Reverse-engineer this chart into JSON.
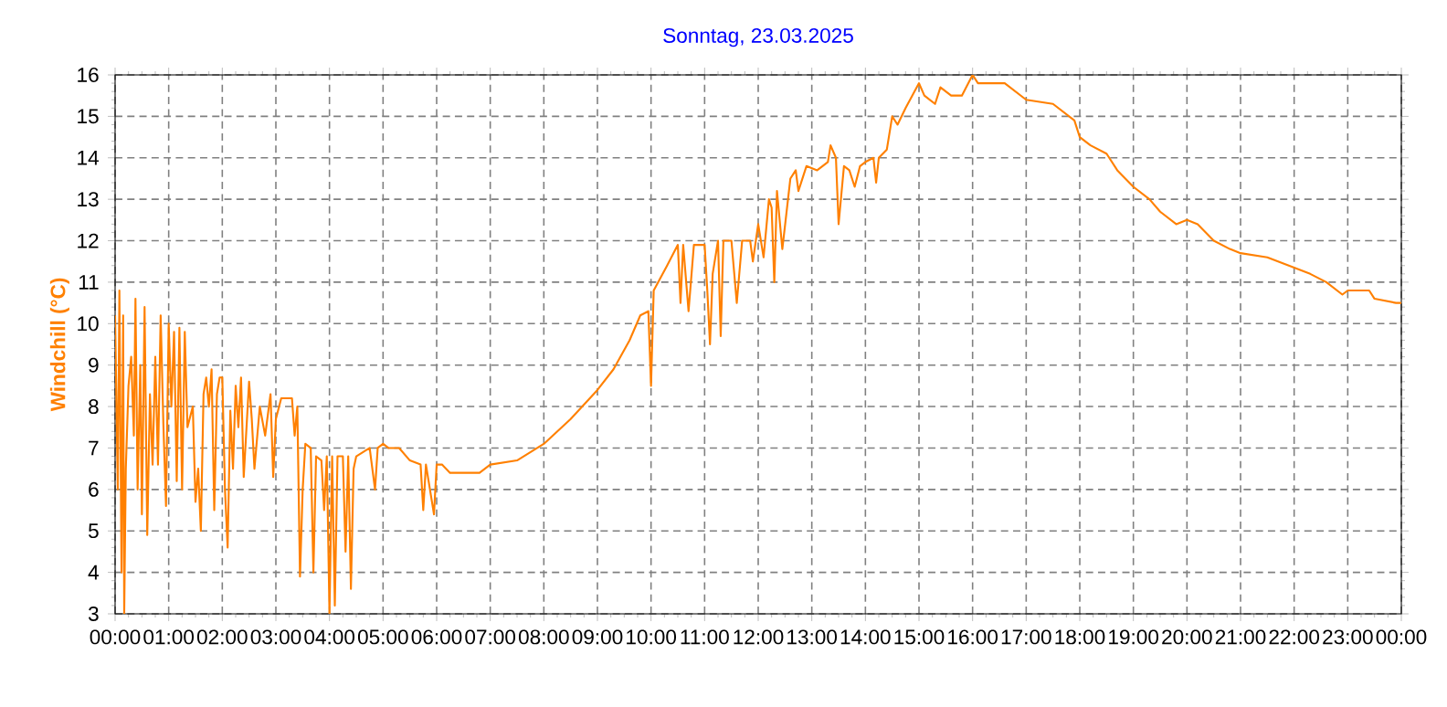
{
  "chart_data": {
    "type": "line",
    "title": "Sonntag, 23.03.2025",
    "ylabel": "Windchill (°C)",
    "xlim": [
      0,
      24
    ],
    "ylim": [
      3,
      16
    ],
    "xticks": [
      {
        "value": 0,
        "label": "00:00"
      },
      {
        "value": 1,
        "label": "01:00"
      },
      {
        "value": 2,
        "label": "02:00"
      },
      {
        "value": 3,
        "label": "03:00"
      },
      {
        "value": 4,
        "label": "04:00"
      },
      {
        "value": 5,
        "label": "05:00"
      },
      {
        "value": 6,
        "label": "06:00"
      },
      {
        "value": 7,
        "label": "07:00"
      },
      {
        "value": 8,
        "label": "08:00"
      },
      {
        "value": 9,
        "label": "09:00"
      },
      {
        "value": 10,
        "label": "10:00"
      },
      {
        "value": 11,
        "label": "11:00"
      },
      {
        "value": 12,
        "label": "12:00"
      },
      {
        "value": 13,
        "label": "13:00"
      },
      {
        "value": 14,
        "label": "14:00"
      },
      {
        "value": 15,
        "label": "15:00"
      },
      {
        "value": 16,
        "label": "16:00"
      },
      {
        "value": 17,
        "label": "17:00"
      },
      {
        "value": 18,
        "label": "18:00"
      },
      {
        "value": 19,
        "label": "19:00"
      },
      {
        "value": 20,
        "label": "20:00"
      },
      {
        "value": 21,
        "label": "21:00"
      },
      {
        "value": 22,
        "label": "22:00"
      },
      {
        "value": 23,
        "label": "23:00"
      },
      {
        "value": 24,
        "label": "00:00"
      }
    ],
    "yticks": [
      3,
      4,
      5,
      6,
      7,
      8,
      9,
      10,
      11,
      12,
      13,
      14,
      15,
      16
    ],
    "grid": true,
    "line_style": "solid",
    "series": [
      {
        "color": "#ff8000",
        "x": [
          0.0,
          0.05,
          0.08,
          0.12,
          0.15,
          0.17,
          0.2,
          0.25,
          0.3,
          0.35,
          0.38,
          0.42,
          0.47,
          0.5,
          0.55,
          0.6,
          0.65,
          0.7,
          0.75,
          0.8,
          0.85,
          0.9,
          0.95,
          1.0,
          1.05,
          1.1,
          1.15,
          1.2,
          1.25,
          1.3,
          1.35,
          1.45,
          1.5,
          1.55,
          1.6,
          1.65,
          1.7,
          1.75,
          1.8,
          1.85,
          1.9,
          1.95,
          2.0,
          2.05,
          2.1,
          2.15,
          2.2,
          2.25,
          2.3,
          2.35,
          2.4,
          2.5,
          2.55,
          2.6,
          2.7,
          2.8,
          2.9,
          2.95,
          3.0,
          3.1,
          3.3,
          3.35,
          3.4,
          3.45,
          3.5,
          3.55,
          3.65,
          3.7,
          3.75,
          3.85,
          3.9,
          3.95,
          4.0,
          4.05,
          4.1,
          4.15,
          4.25,
          4.3,
          4.35,
          4.4,
          4.45,
          4.5,
          4.75,
          4.85,
          4.9,
          5.0,
          5.1,
          5.3,
          5.5,
          5.7,
          5.75,
          5.8,
          5.95,
          6.0,
          6.1,
          6.25,
          6.5,
          6.8,
          7.0,
          7.5,
          8.0,
          8.5,
          9.0,
          9.3,
          9.6,
          9.8,
          9.95,
          10.0,
          10.05,
          10.3,
          10.5,
          10.55,
          10.6,
          10.7,
          10.8,
          11.0,
          11.05,
          11.1,
          11.15,
          11.25,
          11.3,
          11.35,
          11.5,
          11.6,
          11.7,
          11.85,
          11.9,
          12.0,
          12.1,
          12.2,
          12.25,
          12.3,
          12.35,
          12.45,
          12.6,
          12.7,
          12.75,
          12.9,
          13.1,
          13.3,
          13.35,
          13.45,
          13.5,
          13.6,
          13.7,
          13.8,
          13.9,
          14.0,
          14.15,
          14.2,
          14.25,
          14.4,
          14.5,
          14.6,
          14.75,
          15.0,
          15.1,
          15.3,
          15.4,
          15.6,
          15.8,
          16.0,
          16.1,
          16.3,
          16.6,
          17.0,
          17.5,
          17.9,
          18.0,
          18.2,
          18.5,
          18.7,
          19.0,
          19.3,
          19.5,
          19.8,
          20.0,
          20.2,
          20.5,
          20.8,
          21.0,
          21.5,
          21.9,
          22.3,
          22.6,
          22.9,
          23.0,
          23.4,
          23.5,
          23.9,
          24.0
        ],
        "values": [
          10.2,
          6.0,
          10.8,
          4.0,
          10.2,
          3.0,
          6.5,
          8.5,
          9.2,
          7.3,
          10.6,
          6.0,
          9.0,
          5.4,
          10.4,
          4.9,
          8.3,
          6.6,
          9.2,
          6.6,
          10.2,
          7.6,
          5.6,
          10.0,
          8.0,
          9.8,
          6.2,
          9.9,
          6.0,
          9.8,
          7.5,
          8.0,
          5.7,
          6.5,
          5.0,
          8.3,
          8.7,
          8.0,
          8.9,
          5.5,
          8.3,
          8.7,
          8.7,
          6.0,
          4.6,
          7.9,
          6.5,
          8.5,
          7.5,
          8.7,
          6.3,
          8.6,
          7.7,
          6.5,
          8.0,
          7.3,
          8.3,
          6.3,
          7.7,
          8.2,
          8.2,
          7.3,
          8.0,
          3.9,
          6.0,
          7.1,
          7.0,
          4.0,
          6.8,
          6.7,
          5.5,
          6.8,
          3.0,
          6.8,
          3.2,
          6.8,
          6.8,
          4.5,
          6.8,
          3.6,
          6.5,
          6.8,
          7.0,
          6.0,
          7.0,
          7.1,
          7.0,
          7.0,
          6.7,
          6.6,
          5.5,
          6.6,
          5.4,
          6.6,
          6.6,
          6.4,
          6.4,
          6.4,
          6.6,
          6.7,
          7.1,
          7.7,
          8.4,
          8.9,
          9.6,
          10.2,
          10.3,
          8.5,
          10.8,
          11.4,
          11.9,
          10.5,
          11.9,
          10.3,
          11.9,
          11.9,
          10.8,
          9.5,
          11.2,
          12.0,
          9.7,
          12.0,
          12.0,
          10.5,
          12.0,
          12.0,
          11.5,
          12.4,
          11.6,
          13.0,
          12.8,
          11.0,
          13.2,
          11.8,
          13.5,
          13.7,
          13.2,
          13.8,
          13.7,
          13.9,
          14.3,
          14.0,
          12.4,
          13.8,
          13.7,
          13.3,
          13.8,
          13.9,
          14.0,
          13.4,
          14.0,
          14.2,
          15.0,
          14.8,
          15.2,
          15.8,
          15.5,
          15.3,
          15.7,
          15.5,
          15.5,
          16.0,
          15.8,
          15.8,
          15.8,
          15.4,
          15.3,
          14.9,
          14.5,
          14.3,
          14.1,
          13.7,
          13.3,
          13.0,
          12.7,
          12.4,
          12.5,
          12.4,
          12.0,
          11.8,
          11.7,
          11.6,
          11.4,
          11.2,
          11.0,
          10.7,
          10.8,
          10.8,
          10.6,
          10.5,
          10.5
        ]
      }
    ]
  }
}
